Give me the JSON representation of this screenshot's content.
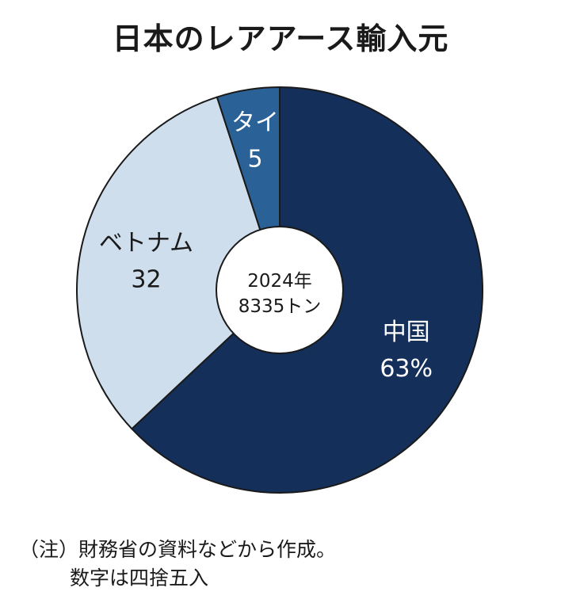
{
  "chart_data": {
    "type": "pie",
    "title": "日本のレアアース輸入元",
    "center_label": {
      "line1": "2024年",
      "line2": "8335トン"
    },
    "slices": [
      {
        "name": "中国",
        "value": 63,
        "value_label": "63%",
        "color": "#14305a",
        "text_color": "#ffffff"
      },
      {
        "name": "ベトナム",
        "value": 32,
        "value_label": "32",
        "color": "#cedeed",
        "text_color": "#1a1a1a"
      },
      {
        "name": "タイ",
        "value": 5,
        "value_label": "5",
        "color": "#2a6298",
        "text_color": "#ffffff"
      }
    ]
  },
  "notes": {
    "line1": "（注）財務省の資料などから作成。",
    "line2": "数字は四捨五入"
  }
}
